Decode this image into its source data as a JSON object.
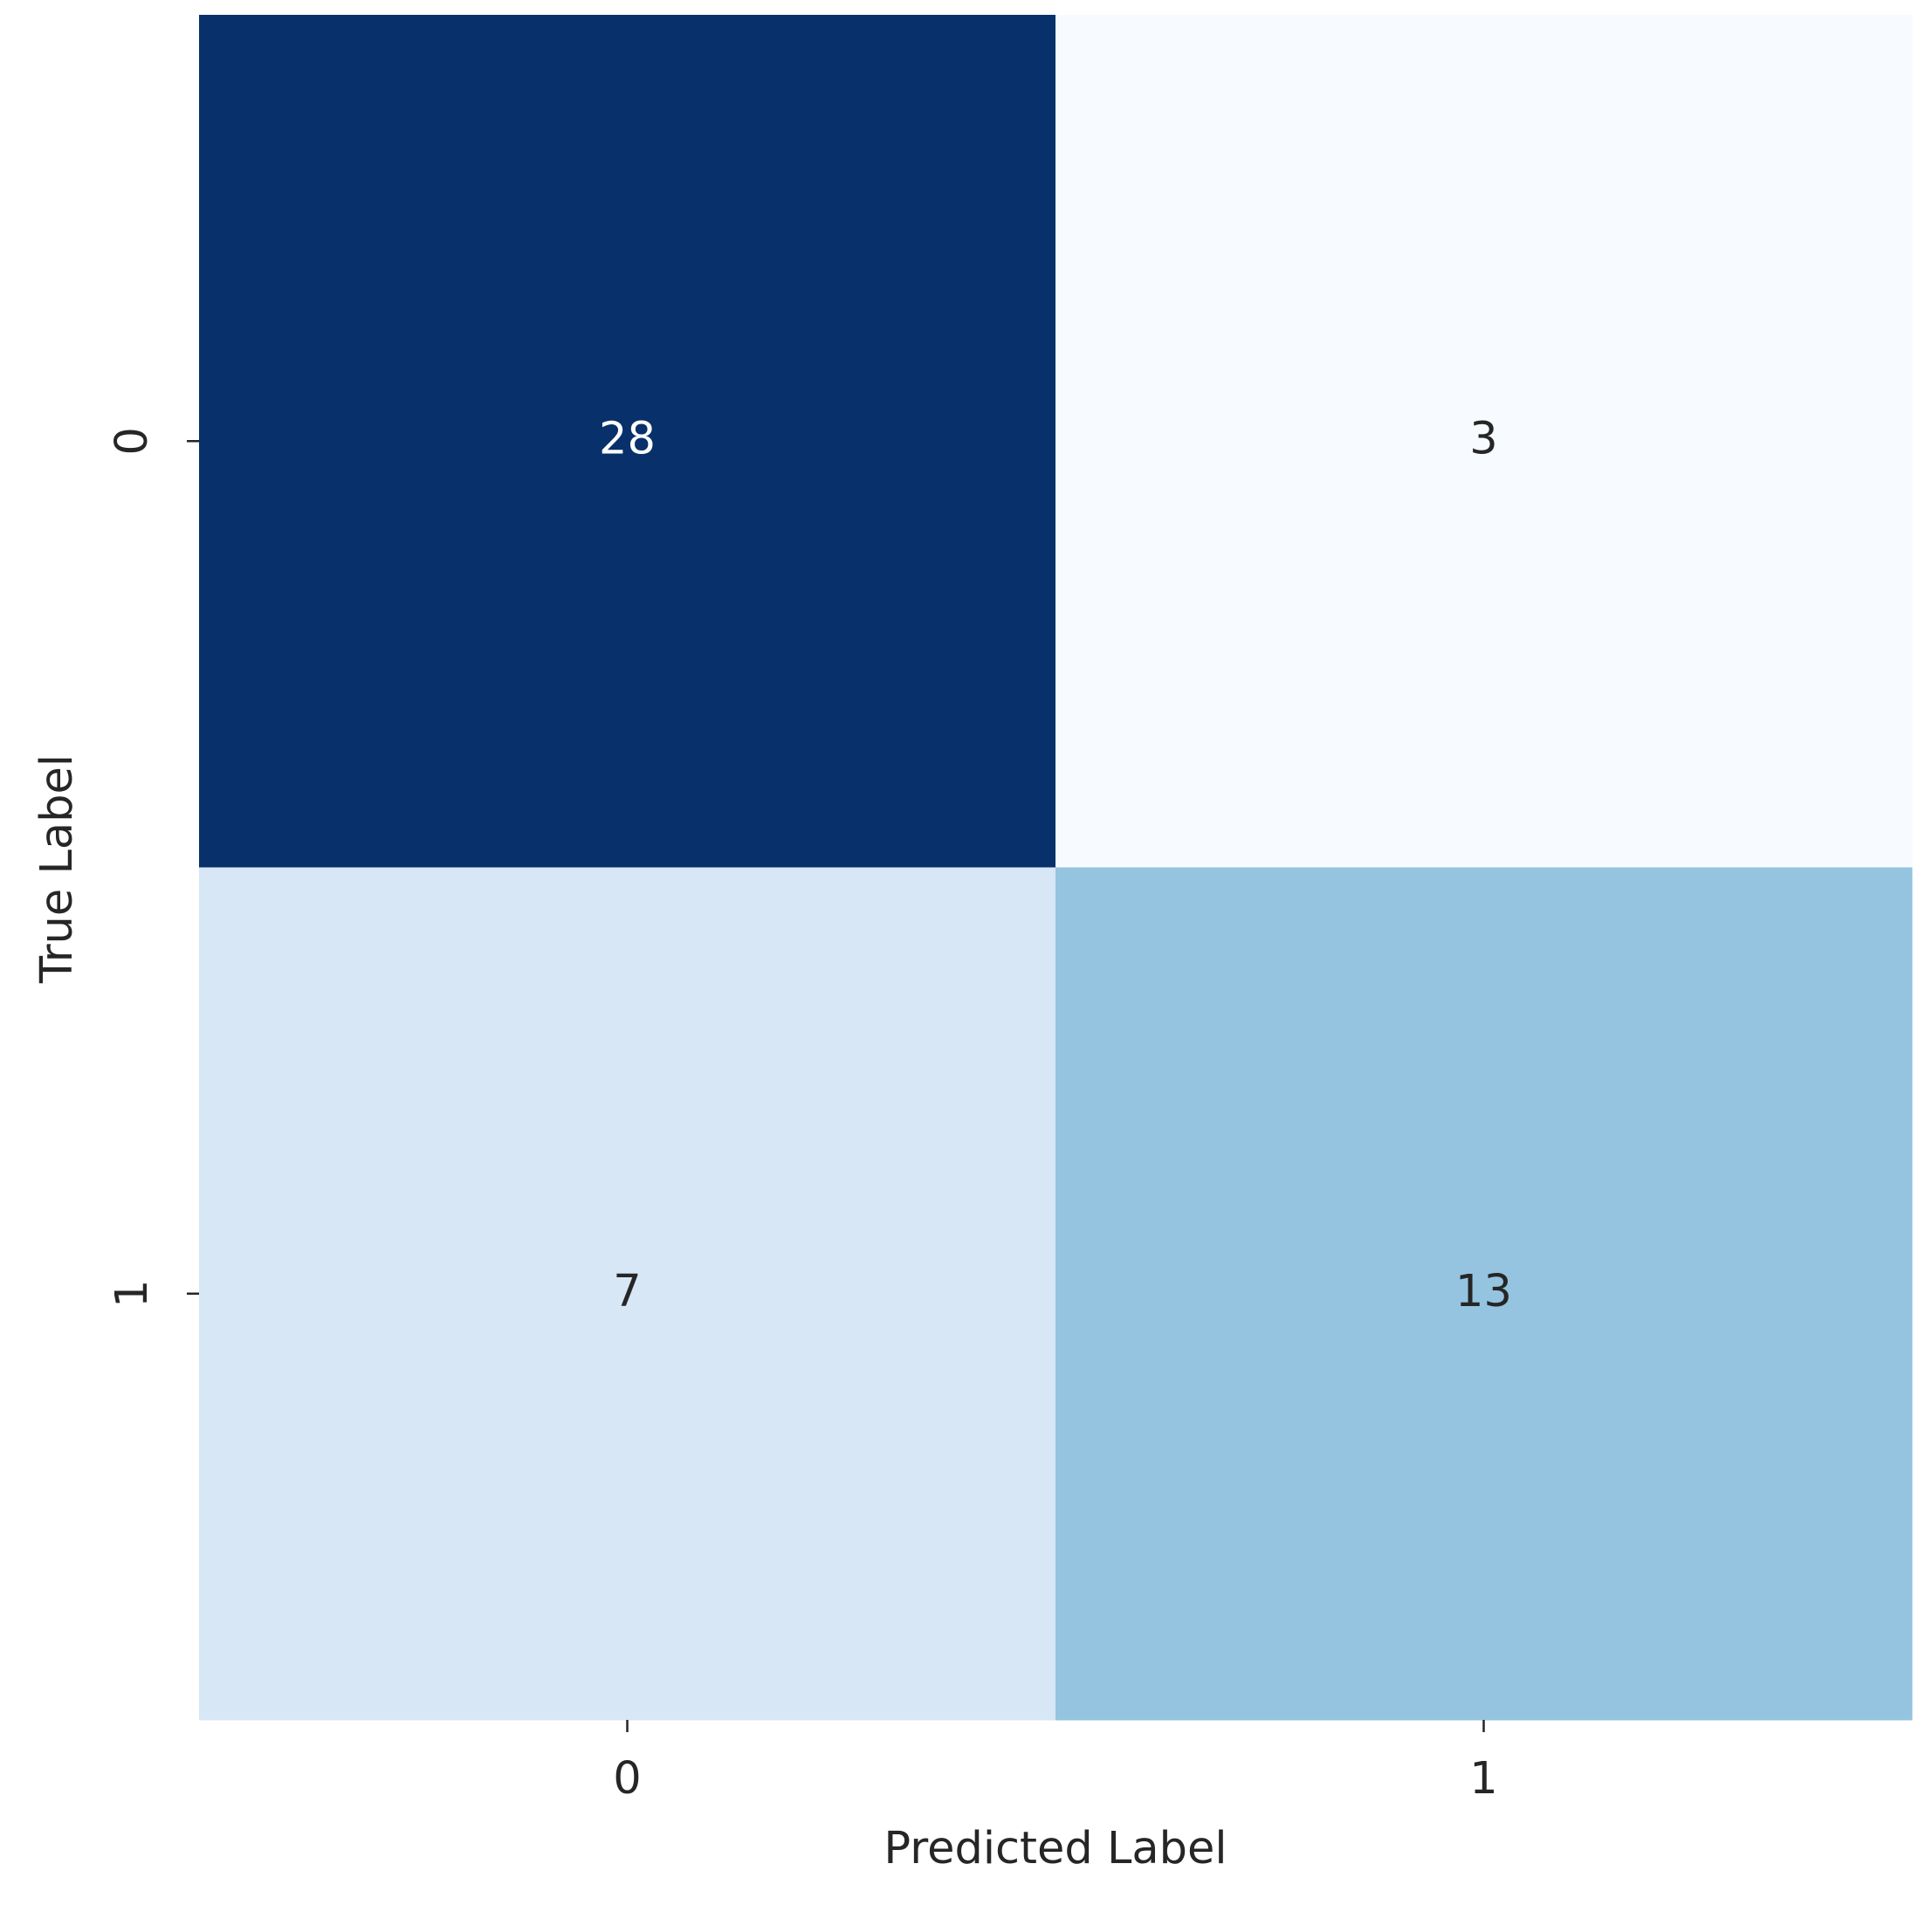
{
  "chart_data": {
    "type": "heatmap",
    "x_categories": [
      "0",
      "1"
    ],
    "y_categories": [
      "0",
      "1"
    ],
    "values": [
      [
        28,
        3
      ],
      [
        7,
        13
      ]
    ],
    "xlabel": "Predicted Label",
    "ylabel": "True Label",
    "colormap": [
      "#f7fbff",
      "#deebf7",
      "#c6dbef",
      "#9ecae1",
      "#6baed6",
      "#4292c6",
      "#2171b5",
      "#08519c",
      "#08306b"
    ],
    "colorbar": false
  }
}
